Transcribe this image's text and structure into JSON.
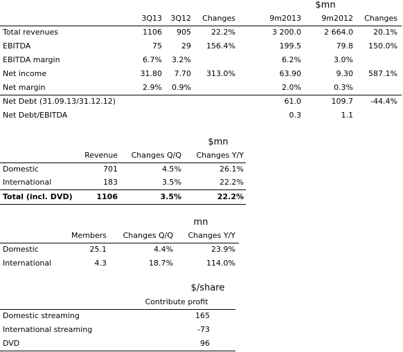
{
  "tables": [
    {
      "unit": "$mn",
      "columns": [
        "3Q13",
        "3Q12",
        "Changes",
        "9m2013",
        "9m2012",
        "Changes"
      ],
      "rows": [
        {
          "label": "Total revenues",
          "cells": [
            "1106",
            "905",
            "22.2%",
            "3 200.0",
            "2 664.0",
            "20.1%"
          ]
        },
        {
          "label": "EBITDA",
          "cells": [
            "75",
            "29",
            "156.4%",
            "199.5",
            "79.8",
            "150.0%"
          ]
        },
        {
          "label": "EBITDA margin",
          "cells": [
            "6.7%",
            "3.2%",
            null,
            "6.2%",
            "3.0%",
            null
          ]
        },
        {
          "label": "Net income",
          "cells": [
            "31.80",
            "7.70",
            "313.0%",
            "63.90",
            "9.30",
            "587.1%"
          ]
        },
        {
          "label": "Net margin",
          "cells": [
            "2.9%",
            "0.9%",
            null,
            "2.0%",
            "0.3%",
            null
          ]
        },
        {
          "label": "Net Debt (31.09.13/31.12.12)",
          "cells": [
            null,
            null,
            null,
            "61.0",
            "109.7",
            "-44.4%"
          ]
        },
        {
          "label": "Net Debt/EBITDA",
          "cells": [
            null,
            null,
            null,
            "0.3",
            "1.1",
            null
          ]
        }
      ]
    },
    {
      "unit": "$mn",
      "columns": [
        "Revenue",
        "Changes Q/Q",
        "Changes Y/Y"
      ],
      "rows": [
        {
          "label": "Domestic",
          "cells": [
            "701",
            "4.5%",
            "26.1%"
          ]
        },
        {
          "label": "International",
          "cells": [
            "183",
            "3.5%",
            "22.2%"
          ]
        },
        {
          "label": "Total (incl. DVD)",
          "cells": [
            "1106",
            "3.5%",
            "22.2%"
          ],
          "bold": true
        }
      ]
    },
    {
      "unit": "mn",
      "columns": [
        "Members",
        "Changes Q/Q",
        "Changes Y/Y"
      ],
      "rows": [
        {
          "label": "Domestic",
          "cells": [
            "25.1",
            "4.4%",
            "23.9%"
          ]
        },
        {
          "label": "International",
          "cells": [
            "4.3",
            "18.7%",
            "114.0%"
          ]
        }
      ]
    },
    {
      "unit": "$/share",
      "columns": [
        "Contribute profit"
      ],
      "rows": [
        {
          "label": "Domestic streaming",
          "cells": [
            "165"
          ]
        },
        {
          "label": "International streaming",
          "cells": [
            "-73"
          ]
        },
        {
          "label": "DVD",
          "cells": [
            "96"
          ]
        }
      ]
    }
  ]
}
